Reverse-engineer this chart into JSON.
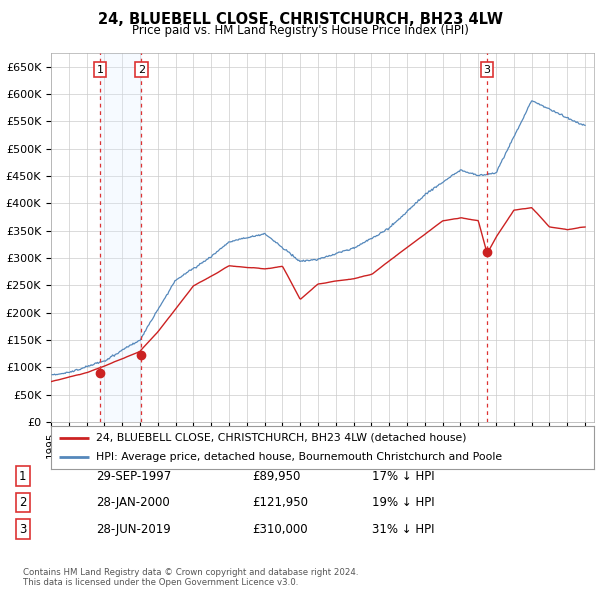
{
  "title": "24, BLUEBELL CLOSE, CHRISTCHURCH, BH23 4LW",
  "subtitle": "Price paid vs. HM Land Registry's House Price Index (HPI)",
  "ylim": [
    0,
    675000
  ],
  "yticks": [
    0,
    50000,
    100000,
    150000,
    200000,
    250000,
    300000,
    350000,
    400000,
    450000,
    500000,
    550000,
    600000,
    650000
  ],
  "ytick_labels": [
    "£0",
    "£50K",
    "£100K",
    "£150K",
    "£200K",
    "£250K",
    "£300K",
    "£350K",
    "£400K",
    "£450K",
    "£500K",
    "£550K",
    "£600K",
    "£650K"
  ],
  "hpi_color": "#5588bb",
  "price_color": "#cc2222",
  "vline_color": "#dd3333",
  "marker_color": "#cc2222",
  "bg_color": "#ffffff",
  "grid_color": "#cccccc",
  "shade_color": "#ddeeff",
  "transactions": [
    {
      "label": "1",
      "date_num": 1997.75,
      "price": 89950,
      "text": "29-SEP-1997",
      "price_str": "£89,950",
      "hpi_str": "17% ↓ HPI"
    },
    {
      "label": "2",
      "date_num": 2000.08,
      "price": 121950,
      "text": "28-JAN-2000",
      "price_str": "£121,950",
      "hpi_str": "19% ↓ HPI"
    },
    {
      "label": "3",
      "date_num": 2019.5,
      "price": 310000,
      "text": "28-JUN-2019",
      "price_str": "£310,000",
      "hpi_str": "31% ↓ HPI"
    }
  ],
  "legend_entries": [
    "24, BLUEBELL CLOSE, CHRISTCHURCH, BH23 4LW (detached house)",
    "HPI: Average price, detached house, Bournemouth Christchurch and Poole"
  ],
  "footer_text": "Contains HM Land Registry data © Crown copyright and database right 2024.\nThis data is licensed under the Open Government Licence v3.0.",
  "xmin": 1995.0,
  "xmax": 2025.5
}
